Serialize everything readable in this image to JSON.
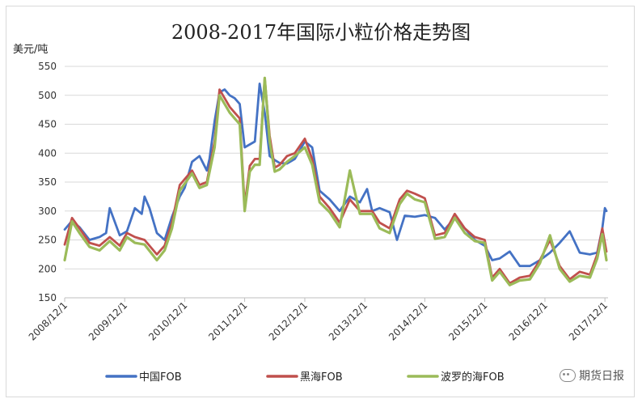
{
  "chart_data": {
    "type": "line",
    "title": "2008-2017年国际小粒价格走势图",
    "ylabel": "美元/吨",
    "ylim": [
      150,
      550
    ],
    "yticks": [
      150,
      200,
      250,
      300,
      350,
      400,
      450,
      500,
      550
    ],
    "xticks": [
      "2008/12/1",
      "2009/12/1",
      "2010/12/1",
      "2011/12/1",
      "2012/12/1",
      "2013/12/1",
      "2014/12/1",
      "2015/12/1",
      "2016/12/1",
      "2017/12/1"
    ],
    "grid": true,
    "legend_position": "bottom",
    "series": [
      {
        "name": "中国FOB",
        "color": "#4472C4",
        "x": [
          "2008-12-01",
          "2009-01-15",
          "2009-03-01",
          "2009-05-01",
          "2009-07-01",
          "2009-08-10",
          "2009-09-01",
          "2009-11-01",
          "2009-12-15",
          "2010-02-01",
          "2010-03-15",
          "2010-04-01",
          "2010-05-01",
          "2010-06-15",
          "2010-08-01",
          "2010-09-15",
          "2010-11-01",
          "2010-12-01",
          "2011-01-15",
          "2011-03-01",
          "2011-04-15",
          "2011-05-01",
          "2011-06-01",
          "2011-07-01",
          "2011-08-01",
          "2011-09-01",
          "2011-10-01",
          "2011-11-01",
          "2011-12-01",
          "2012-01-01",
          "2012-02-01",
          "2012-03-01",
          "2012-04-01",
          "2012-05-01",
          "2012-06-01",
          "2012-07-01",
          "2012-08-15",
          "2012-10-01",
          "2012-12-01",
          "2013-01-15",
          "2013-03-01",
          "2013-05-01",
          "2013-07-01",
          "2013-09-01",
          "2013-11-01",
          "2013-12-15",
          "2014-01-15",
          "2014-03-01",
          "2014-05-01",
          "2014-06-15",
          "2014-08-01",
          "2014-10-01",
          "2014-12-01",
          "2015-02-01",
          "2015-04-01",
          "2015-06-01",
          "2015-08-01",
          "2015-10-01",
          "2015-12-01",
          "2016-01-15",
          "2016-03-01",
          "2016-05-01",
          "2016-07-01",
          "2016-09-01",
          "2016-11-01",
          "2017-01-01",
          "2017-03-01",
          "2017-05-01",
          "2017-07-01",
          "2017-09-01",
          "2017-10-15",
          "2017-11-15",
          "2017-12-01",
          "2017-12-10"
        ],
        "values": [
          268,
          283,
          272,
          250,
          255,
          262,
          305,
          258,
          265,
          305,
          295,
          325,
          305,
          262,
          250,
          290,
          325,
          340,
          385,
          395,
          370,
          390,
          455,
          505,
          510,
          500,
          495,
          485,
          410,
          415,
          420,
          520,
          470,
          395,
          388,
          383,
          382,
          390,
          420,
          410,
          335,
          320,
          300,
          325,
          315,
          338,
          300,
          305,
          298,
          250,
          292,
          290,
          293,
          288,
          268,
          288,
          270,
          250,
          240,
          215,
          218,
          230,
          205,
          205,
          215,
          228,
          245,
          265,
          228,
          225,
          228,
          270,
          305,
          300
        ]
      },
      {
        "name": "黑海FOB",
        "color": "#C0504D",
        "x": [
          "2008-12-01",
          "2009-01-15",
          "2009-03-01",
          "2009-05-01",
          "2009-07-01",
          "2009-09-01",
          "2009-11-01",
          "2009-12-15",
          "2010-02-01",
          "2010-04-01",
          "2010-06-15",
          "2010-08-01",
          "2010-09-15",
          "2010-11-01",
          "2011-01-15",
          "2011-03-01",
          "2011-04-15",
          "2011-06-01",
          "2011-07-01",
          "2011-08-01",
          "2011-09-01",
          "2011-10-01",
          "2011-11-01",
          "2011-12-01",
          "2012-01-01",
          "2012-02-01",
          "2012-03-01",
          "2012-04-01",
          "2012-05-01",
          "2012-06-01",
          "2012-07-01",
          "2012-08-15",
          "2012-10-01",
          "2012-12-01",
          "2013-01-15",
          "2013-03-01",
          "2013-05-01",
          "2013-07-01",
          "2013-09-01",
          "2013-11-01",
          "2014-01-15",
          "2014-03-01",
          "2014-05-01",
          "2014-07-01",
          "2014-08-15",
          "2014-10-01",
          "2014-12-01",
          "2015-02-01",
          "2015-04-01",
          "2015-06-01",
          "2015-08-01",
          "2015-10-01",
          "2015-12-01",
          "2016-01-15",
          "2016-03-01",
          "2016-05-01",
          "2016-07-01",
          "2016-09-01",
          "2016-11-01",
          "2017-01-01",
          "2017-03-01",
          "2017-05-01",
          "2017-07-01",
          "2017-09-01",
          "2017-10-15",
          "2017-11-15",
          "2017-12-10"
        ],
        "values": [
          242,
          288,
          270,
          245,
          240,
          255,
          240,
          262,
          255,
          250,
          225,
          240,
          280,
          345,
          370,
          345,
          350,
          420,
          510,
          495,
          480,
          470,
          460,
          310,
          378,
          390,
          390,
          530,
          430,
          375,
          380,
          395,
          400,
          425,
          390,
          325,
          305,
          280,
          320,
          300,
          300,
          280,
          270,
          320,
          335,
          330,
          322,
          258,
          262,
          295,
          270,
          255,
          250,
          185,
          200,
          175,
          185,
          188,
          215,
          250,
          205,
          182,
          195,
          190,
          225,
          270,
          230
        ]
      },
      {
        "name": "波罗的海FOB",
        "color": "#9BBB59",
        "x": [
          "2008-12-01",
          "2009-01-15",
          "2009-03-01",
          "2009-05-01",
          "2009-07-01",
          "2009-09-01",
          "2009-11-01",
          "2009-12-15",
          "2010-02-01",
          "2010-04-01",
          "2010-06-15",
          "2010-08-01",
          "2010-09-15",
          "2010-11-01",
          "2011-01-15",
          "2011-03-01",
          "2011-04-15",
          "2011-06-01",
          "2011-07-01",
          "2011-08-01",
          "2011-09-01",
          "2011-10-01",
          "2011-11-01",
          "2011-12-01",
          "2012-01-01",
          "2012-02-01",
          "2012-03-01",
          "2012-04-01",
          "2012-05-01",
          "2012-06-01",
          "2012-07-01",
          "2012-08-15",
          "2012-10-01",
          "2012-12-01",
          "2013-01-15",
          "2013-03-01",
          "2013-05-01",
          "2013-07-01",
          "2013-09-01",
          "2013-11-01",
          "2014-01-15",
          "2014-03-01",
          "2014-05-01",
          "2014-07-01",
          "2014-08-15",
          "2014-10-01",
          "2014-12-01",
          "2015-02-01",
          "2015-04-01",
          "2015-06-01",
          "2015-08-01",
          "2015-10-01",
          "2015-12-01",
          "2016-01-15",
          "2016-03-01",
          "2016-05-01",
          "2016-07-01",
          "2016-09-01",
          "2016-11-01",
          "2017-01-01",
          "2017-03-01",
          "2017-05-01",
          "2017-07-01",
          "2017-09-01",
          "2017-10-15",
          "2017-11-15",
          "2017-12-10"
        ],
        "values": [
          215,
          282,
          262,
          238,
          232,
          248,
          232,
          255,
          245,
          242,
          215,
          232,
          270,
          335,
          365,
          340,
          345,
          410,
          500,
          485,
          470,
          460,
          450,
          300,
          368,
          380,
          380,
          530,
          420,
          368,
          372,
          385,
          395,
          410,
          380,
          315,
          298,
          272,
          370,
          295,
          295,
          270,
          262,
          312,
          330,
          320,
          315,
          252,
          255,
          288,
          262,
          248,
          245,
          180,
          195,
          172,
          180,
          182,
          210,
          258,
          200,
          178,
          188,
          185,
          218,
          260,
          215
        ]
      }
    ]
  },
  "watermark": "期货日报"
}
